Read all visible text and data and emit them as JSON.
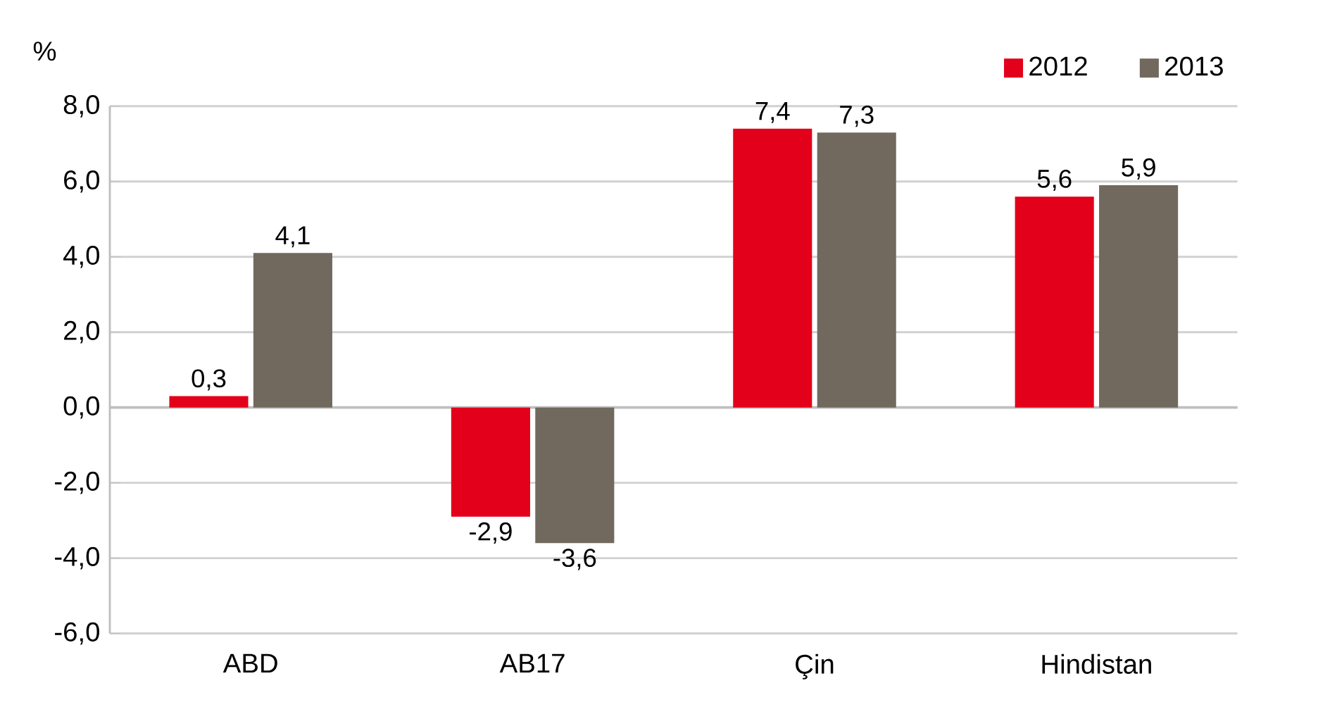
{
  "chart_data": {
    "type": "bar",
    "ylabel": "%",
    "categories": [
      "ABD",
      "AB17",
      "Çin",
      "Hindistan"
    ],
    "series": [
      {
        "name": "2012",
        "color": "#e2001a",
        "values": [
          0.3,
          -2.9,
          7.4,
          5.6
        ],
        "value_labels": [
          "0,3",
          "-2,9",
          "7,4",
          "5,6"
        ]
      },
      {
        "name": "2013",
        "color": "#72695e",
        "values": [
          4.1,
          -3.6,
          7.3,
          5.9
        ],
        "value_labels": [
          "4,1",
          "-3,6",
          "7,3",
          "5,9"
        ]
      }
    ],
    "ylim": [
      -6,
      8
    ],
    "yticks": [
      {
        "value": -6,
        "label": "-6,0"
      },
      {
        "value": -4,
        "label": "-4,0"
      },
      {
        "value": -2,
        "label": "-2,0"
      },
      {
        "value": 0,
        "label": "0,0"
      },
      {
        "value": 2,
        "label": "2,0"
      },
      {
        "value": 4,
        "label": "4,0"
      },
      {
        "value": 6,
        "label": "6,0"
      },
      {
        "value": 8,
        "label": "8,0"
      }
    ],
    "grid": "y",
    "legend": "top right"
  }
}
